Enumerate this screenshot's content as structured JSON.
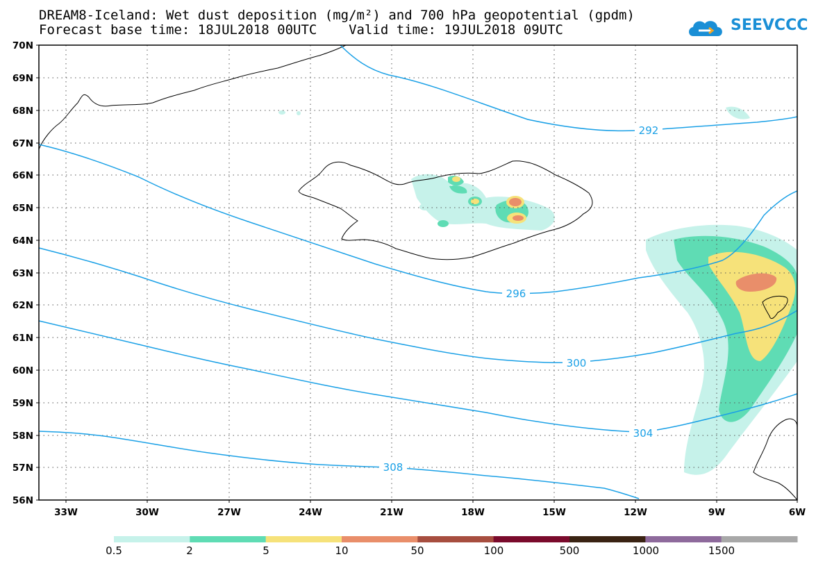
{
  "title": {
    "line1": "DREAM8-Iceland: Wet dust deposition (mg/m²) and 700 hPa geopotential (gpdm)",
    "line2": "Forecast base time: 18JUL2018 00UTC    Valid time: 19JUL2018 09UTC"
  },
  "logo": {
    "text": "SEEVCCC",
    "color": "#1a8fd6",
    "icon": "cloud-icon"
  },
  "map": {
    "lat_labels": [
      "70N",
      "69N",
      "68N",
      "67N",
      "66N",
      "65N",
      "64N",
      "63N",
      "62N",
      "61N",
      "60N",
      "59N",
      "58N",
      "57N",
      "56N"
    ],
    "lon_labels": [
      "33W",
      "30W",
      "27W",
      "24W",
      "21W",
      "18W",
      "15W",
      "12W",
      "9W",
      "6W"
    ],
    "contour_labels": [
      "292",
      "296",
      "300",
      "304",
      "308"
    ],
    "contour_color": "#1aa0e6",
    "grid": "dotted"
  },
  "legend": {
    "labels": [
      "0.5",
      "2",
      "5",
      "10",
      "50",
      "100",
      "500",
      "1000",
      "1500"
    ],
    "colors": [
      "#c6f2ea",
      "#5fdcb4",
      "#f6e27a",
      "#e98e6a",
      "#a74e3f",
      "#7a0a2c",
      "#3a2313",
      "#8e6a9c",
      "#a8a8a8"
    ]
  }
}
